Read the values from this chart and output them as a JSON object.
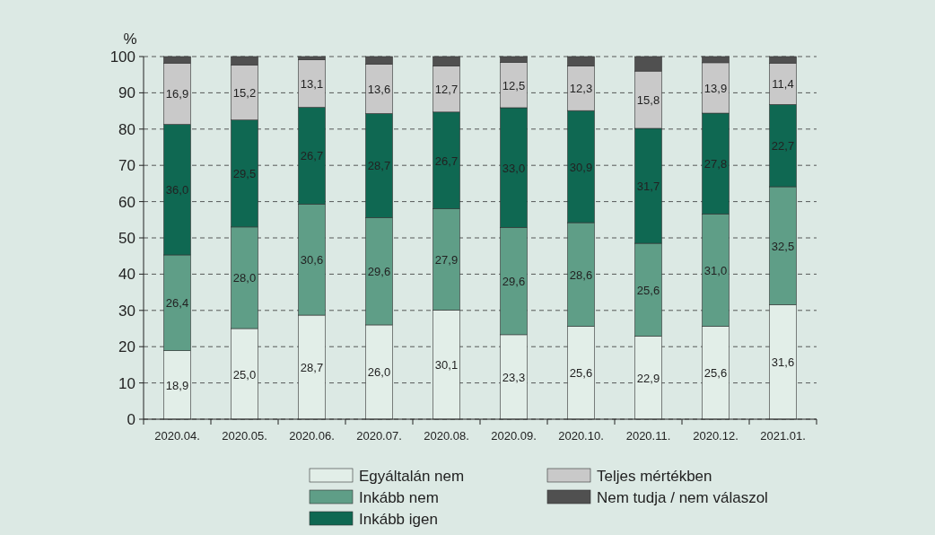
{
  "chart_data": {
    "type": "bar",
    "stacked": true,
    "ylabel": "%",
    "categories": [
      "2020.04.",
      "2020.05.",
      "2020.06.",
      "2020.07.",
      "2020.08.",
      "2020.09.",
      "2020.10.",
      "2020.11.",
      "2020.12.",
      "2021.01."
    ],
    "series": [
      {
        "name": "Egyáltalán nem",
        "color": "#e2eee8",
        "values": [
          18.9,
          25.0,
          28.7,
          26.0,
          30.1,
          23.3,
          25.6,
          22.9,
          25.6,
          31.6
        ],
        "value_labels": [
          "18,9",
          "25,0",
          "28,7",
          "26,0",
          "30,1",
          "23,3",
          "25,6",
          "22,9",
          "25,6",
          "31,6"
        ]
      },
      {
        "name": "Inkább nem",
        "color": "#5f9e87",
        "values": [
          26.4,
          28.0,
          30.6,
          29.6,
          27.9,
          29.6,
          28.6,
          25.6,
          31.0,
          32.5
        ],
        "value_labels": [
          "26,4",
          "28,0",
          "30,6",
          "29,6",
          "27,9",
          "29,6",
          "28,6",
          "25,6",
          "31,0",
          "32,5"
        ]
      },
      {
        "name": "Inkább igen",
        "color": "#0f6852",
        "values": [
          36.0,
          29.5,
          26.7,
          28.7,
          26.7,
          33.0,
          30.9,
          31.7,
          27.8,
          22.7
        ],
        "value_labels": [
          "36,0",
          "29,5",
          "26,7",
          "28,7",
          "26,7",
          "33,0",
          "30,9",
          "31,7",
          "27,8",
          "22,7"
        ]
      },
      {
        "name": "Teljes mértékben",
        "color": "#c9c9c9",
        "values": [
          16.9,
          15.2,
          13.1,
          13.6,
          12.7,
          12.5,
          12.3,
          15.8,
          13.9,
          11.4
        ],
        "value_labels": [
          "16,9",
          "15,2",
          "13,1",
          "13,6",
          "12,7",
          "12,5",
          "12,3",
          "15,8",
          "13,9",
          "11,4"
        ]
      },
      {
        "name": "Nem tudja / nem válaszol",
        "color": "#505050",
        "values": [
          1.8,
          2.3,
          0.9,
          2.1,
          2.6,
          1.6,
          2.6,
          4.0,
          1.7,
          1.8
        ]
      }
    ],
    "ylim": [
      0,
      100
    ],
    "yticks": [
      0,
      10,
      20,
      30,
      40,
      50,
      60,
      70,
      80,
      90,
      100
    ],
    "grid": "y",
    "legend": "bottom"
  }
}
